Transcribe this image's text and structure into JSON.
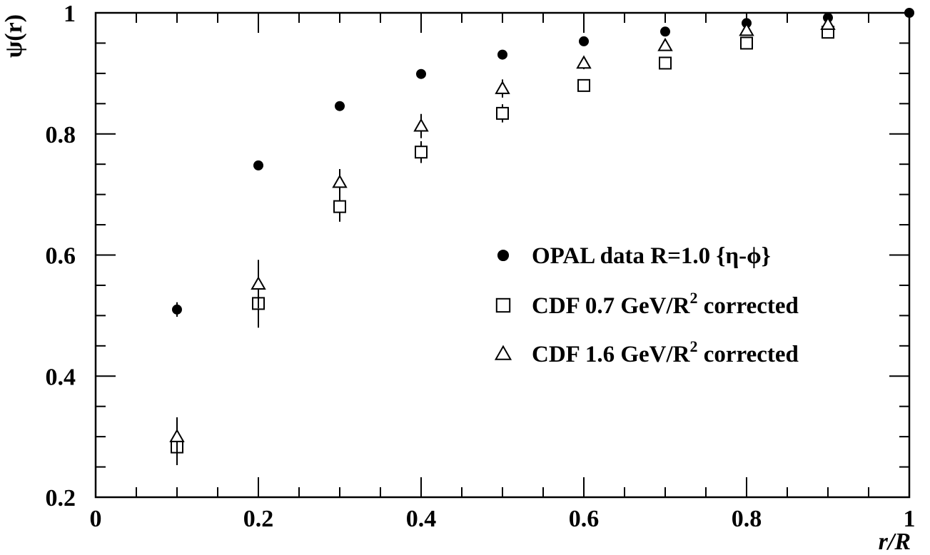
{
  "chart_data": {
    "type": "scatter",
    "xlabel": "r/R",
    "ylabel": "ψ(r)",
    "xlim": [
      0,
      1
    ],
    "ylim": [
      0.2,
      1
    ],
    "x_ticks": [
      0,
      0.2,
      0.4,
      0.6,
      0.8,
      1
    ],
    "x_tick_labels": [
      "0",
      "0.2",
      "0.4",
      "0.6",
      "0.8",
      "1"
    ],
    "y_ticks": [
      0.2,
      0.4,
      0.6,
      0.8,
      1
    ],
    "y_tick_labels": [
      "0.2",
      "0.4",
      "0.6",
      "0.8",
      "1"
    ],
    "x_minor_step": 0.05,
    "y_minor_step": 0.05,
    "grid": false,
    "legend_position": "center-right",
    "series": [
      {
        "name": "OPAL data R=1.0 {η-ϕ}",
        "legend_main": "OPAL data R=1.0 {η-ϕ}",
        "legend_sup": "",
        "legend_tail": "",
        "marker": "filled-circle",
        "color": "#000000",
        "x": [
          0.1,
          0.2,
          0.3,
          0.4,
          0.5,
          0.6,
          0.7,
          0.8,
          0.9,
          1.0
        ],
        "y": [
          0.51,
          0.748,
          0.846,
          0.899,
          0.931,
          0.953,
          0.969,
          0.983,
          0.992,
          1.0
        ],
        "err": [
          0.012,
          0.003,
          0.002,
          0.002,
          0.002,
          0.002,
          0.002,
          0.001,
          0.001,
          0.0
        ]
      },
      {
        "name": "CDF 0.7 GeV/R2 corrected",
        "legend_main": "CDF  0.7 GeV/R",
        "legend_sup": "2",
        "legend_tail": " corrected",
        "marker": "open-square",
        "color": "#000000",
        "x": [
          0.1,
          0.2,
          0.3,
          0.4,
          0.5,
          0.6,
          0.7,
          0.8,
          0.9
        ],
        "y": [
          0.283,
          0.52,
          0.68,
          0.77,
          0.834,
          0.88,
          0.917,
          0.95,
          0.968
        ],
        "err": [
          0.03,
          0.04,
          0.025,
          0.018,
          0.015,
          0.01,
          0.008,
          0.006,
          0.004
        ]
      },
      {
        "name": "CDF 1.6 GeV/R2 corrected",
        "legend_main": "CDF  1.6 GeV/R",
        "legend_sup": "2",
        "legend_tail": " corrected",
        "marker": "open-triangle",
        "color": "#000000",
        "x": [
          0.1,
          0.2,
          0.3,
          0.4,
          0.5,
          0.6,
          0.7,
          0.8,
          0.9
        ],
        "y": [
          0.3,
          0.552,
          0.72,
          0.813,
          0.875,
          0.917,
          0.946,
          0.971,
          0.981
        ],
        "err": [
          0.032,
          0.04,
          0.022,
          0.02,
          0.015,
          0.01,
          0.008,
          0.006,
          0.004
        ]
      }
    ]
  }
}
